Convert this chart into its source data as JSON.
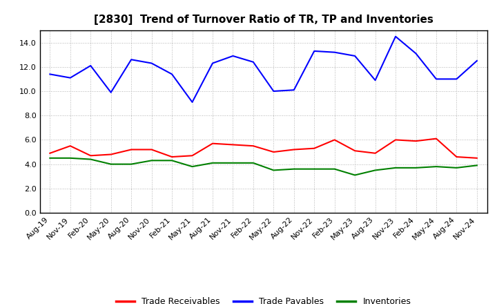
{
  "title": "[2830]  Trend of Turnover Ratio of TR, TP and Inventories",
  "xlabels": [
    "Aug-19",
    "Nov-19",
    "Feb-20",
    "May-20",
    "Aug-20",
    "Nov-20",
    "Feb-21",
    "May-21",
    "Aug-21",
    "Nov-21",
    "Feb-22",
    "May-22",
    "Aug-22",
    "Nov-22",
    "Feb-23",
    "May-23",
    "Aug-23",
    "Nov-23",
    "Feb-24",
    "May-24",
    "Aug-24",
    "Nov-24"
  ],
  "trade_receivables": [
    4.9,
    5.5,
    4.7,
    4.8,
    5.2,
    5.2,
    4.6,
    4.7,
    5.7,
    5.6,
    5.5,
    5.0,
    5.2,
    5.3,
    6.0,
    5.1,
    4.9,
    6.0,
    5.9,
    6.1,
    4.6,
    4.5
  ],
  "trade_payables": [
    11.4,
    11.1,
    12.1,
    9.9,
    12.6,
    12.3,
    11.4,
    9.1,
    12.3,
    12.9,
    12.4,
    10.0,
    10.1,
    13.3,
    13.2,
    12.9,
    10.9,
    14.5,
    13.1,
    11.0,
    11.0,
    12.5
  ],
  "inventories": [
    4.5,
    4.5,
    4.4,
    4.0,
    4.0,
    4.3,
    4.3,
    3.8,
    4.1,
    4.1,
    4.1,
    3.5,
    3.6,
    3.6,
    3.6,
    3.1,
    3.5,
    3.7,
    3.7,
    3.8,
    3.7,
    3.9
  ],
  "tr_color": "#ff0000",
  "tp_color": "#0000ff",
  "inv_color": "#008000",
  "ylim": [
    0,
    15.0
  ],
  "yticks": [
    0.0,
    2.0,
    4.0,
    6.0,
    8.0,
    10.0,
    12.0,
    14.0
  ],
  "background_color": "#ffffff",
  "grid_color": "#aaaaaa",
  "title_fontsize": 11,
  "tick_fontsize": 8,
  "legend_labels": [
    "Trade Receivables",
    "Trade Payables",
    "Inventories"
  ]
}
